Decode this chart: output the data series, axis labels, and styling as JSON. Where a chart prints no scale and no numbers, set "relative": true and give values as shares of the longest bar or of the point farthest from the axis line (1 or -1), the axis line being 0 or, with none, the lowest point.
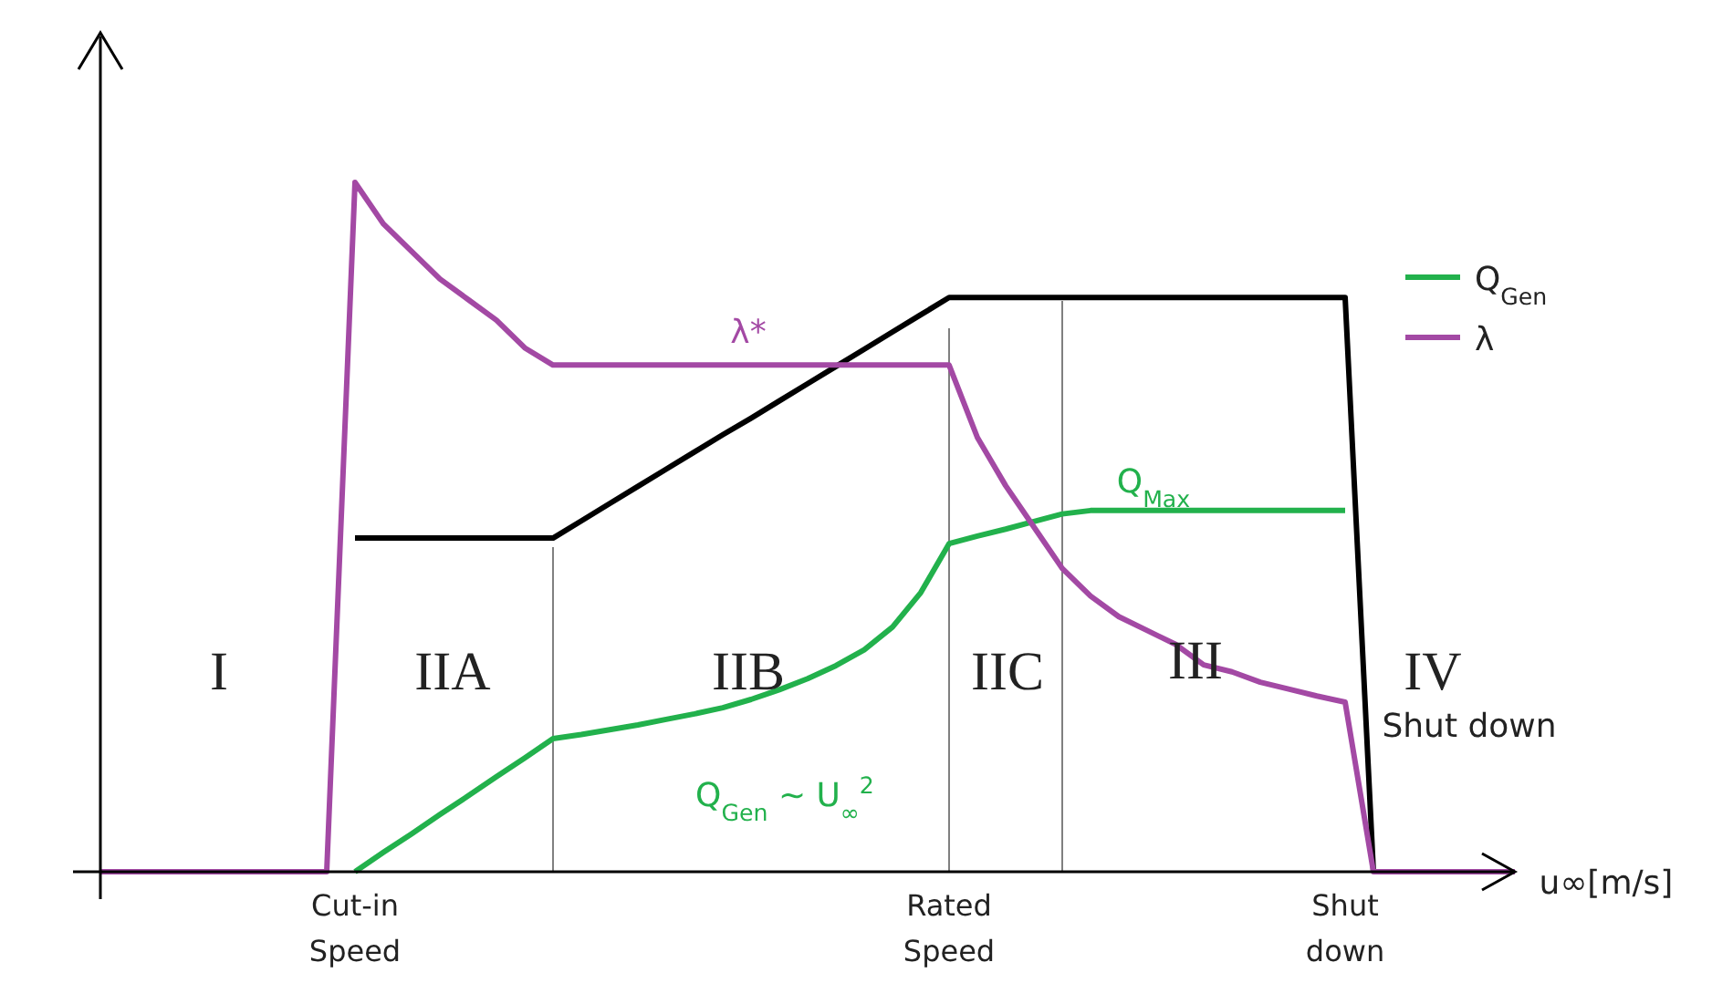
{
  "chart_data": {
    "type": "line",
    "relative": true,
    "xlabel": "u∞[m/s]",
    "categories": [
      null,
      null,
      null,
      null,
      null,
      null,
      null,
      null,
      null,
      "Cut-in Speed",
      null,
      null,
      null,
      null,
      null,
      null,
      null,
      null,
      null,
      null,
      null,
      null,
      null,
      null,
      null,
      null,
      null,
      null,
      null,
      null,
      "Rated Speed",
      null,
      null,
      null,
      null,
      null,
      null,
      null,
      null,
      null,
      null,
      null,
      null,
      null,
      "Shut down",
      null,
      null,
      null,
      null,
      null,
      null
    ],
    "series": [
      {
        "color": "#000000",
        "values": [
          null,
          null,
          null,
          null,
          null,
          null,
          null,
          null,
          null,
          0.484,
          0.484,
          0.484,
          0.484,
          0.484,
          0.484,
          0.484,
          0.484,
          0.509,
          0.534,
          0.559,
          0.584,
          0.609,
          0.634,
          0.658,
          0.683,
          0.708,
          0.733,
          0.758,
          0.783,
          0.808,
          0.833,
          0.833,
          0.833,
          0.833,
          0.833,
          0.833,
          0.833,
          0.833,
          0.833,
          0.833,
          0.833,
          0.833,
          0.833,
          0.833,
          0.833,
          0,
          null,
          null,
          null,
          null,
          null
        ]
      },
      {
        "name": "Q$_{Gen}$",
        "color": "#22b14c",
        "values": [
          null,
          null,
          null,
          null,
          null,
          null,
          null,
          null,
          null,
          0,
          0.028,
          0.055,
          0.083,
          0.11,
          0.138,
          0.165,
          0.193,
          0.199,
          0.206,
          0.213,
          0.221,
          0.229,
          0.238,
          0.25,
          0.264,
          0.28,
          0.299,
          0.322,
          0.355,
          0.405,
          0.476,
          0.487,
          0.497,
          0.508,
          0.519,
          0.524,
          0.524,
          0.524,
          0.524,
          0.524,
          0.524,
          0.524,
          0.524,
          0.524,
          0.524,
          null,
          null,
          null,
          null,
          null,
          null
        ]
      },
      {
        "name": "λ",
        "color": "#a349a4",
        "values": [
          0,
          0,
          0,
          0,
          0,
          0,
          0,
          0,
          0,
          1,
          0.94,
          0.9,
          0.86,
          0.83,
          0.8,
          0.76,
          0.735,
          0.735,
          0.735,
          0.735,
          0.735,
          0.735,
          0.735,
          0.735,
          0.735,
          0.735,
          0.735,
          0.735,
          0.735,
          0.735,
          0.735,
          0.63,
          0.56,
          0.5,
          0.44,
          0.4,
          0.37,
          0.35,
          0.33,
          0.3,
          0.29,
          0.275,
          0.265,
          0.255,
          0.246,
          0,
          0,
          0,
          0,
          0,
          0
        ]
      }
    ],
    "annotations": [
      "I",
      "IIA",
      "IIB",
      "IIC",
      "III",
      "IV",
      "λ*",
      "Q$_{Max}$",
      "Q$_{Gen}$ ~ U$_{∞}$$^{2}$",
      "Shut down"
    ],
    "legend": "top right",
    "line_style": "solid"
  }
}
